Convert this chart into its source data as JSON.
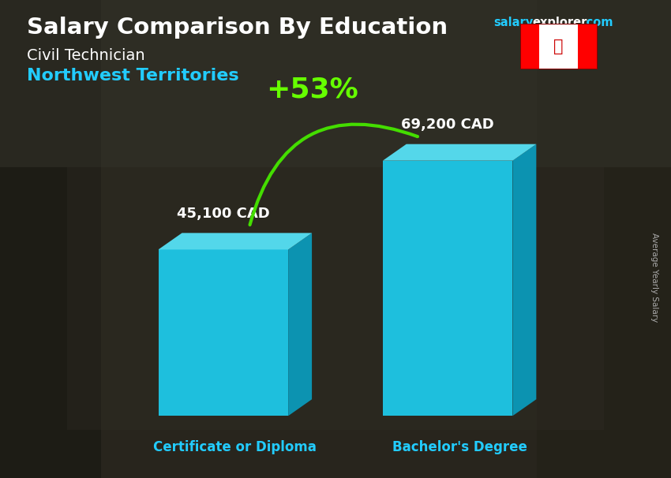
{
  "title_main": "Salary Comparison By Education",
  "subtitle1": "Civil Technician",
  "subtitle2": "Northwest Territories",
  "categories": [
    "Certificate or Diploma",
    "Bachelor's Degree"
  ],
  "values": [
    45100,
    69200
  ],
  "labels": [
    "45,100 CAD",
    "69,200 CAD"
  ],
  "bar_color_face": "#1EC8E8",
  "bar_color_top": "#55DCEF",
  "bar_color_side": "#0A9DBF",
  "pct_label": "+53%",
  "pct_color": "#66FF00",
  "arrow_color": "#44DD00",
  "ylabel": "Average Yearly Salary",
  "title_color": "#FFFFFF",
  "subtitle1_color": "#FFFFFF",
  "subtitle2_color": "#22CCFF",
  "label_color": "#FFFFFF",
  "xticklabel_color": "#22CCFF",
  "site_salary_color": "#22CCFF",
  "site_explorer_color": "#FFFFFF",
  "ylabel_color": "#AAAAAA",
  "bg_color": "#3a3a3a"
}
